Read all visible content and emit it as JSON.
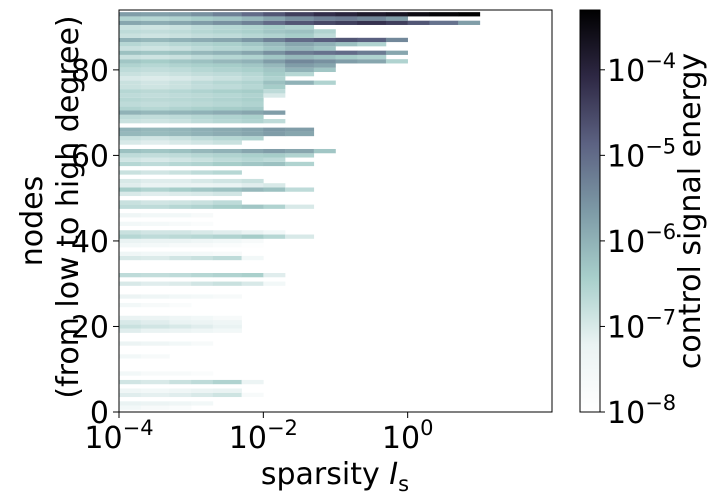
{
  "chart_data": {
    "type": "heatmap",
    "x_scale": "log",
    "xlim": [
      0.0001,
      100
    ],
    "ylim": [
      0,
      94
    ],
    "x_ticks": [
      {
        "value": 0.0001,
        "label": "10",
        "exp": "−4"
      },
      {
        "value": 0.01,
        "label": "10",
        "exp": "−2"
      },
      {
        "value": 1,
        "label": "10",
        "exp": "0"
      }
    ],
    "y_ticks": [
      {
        "value": 0,
        "label": "0"
      },
      {
        "value": 20,
        "label": "20"
      },
      {
        "value": 40,
        "label": "40"
      },
      {
        "value": 60,
        "label": "60"
      },
      {
        "value": 80,
        "label": "80"
      }
    ],
    "xlabel_main": "sparsity ",
    "xlabel_italic": "I",
    "xlabel_sub": "s",
    "ylabel_line1": "nodes",
    "ylabel_line2": "(from low to high degree)",
    "colorbar": {
      "label": "control signal energy",
      "scale": "log",
      "range": [
        1e-08,
        0.0005
      ],
      "ticks": [
        {
          "value": 1e-08,
          "label": "10",
          "exp": "−8"
        },
        {
          "value": 1e-07,
          "label": "10",
          "exp": "−7"
        },
        {
          "value": 1e-06,
          "label": "10",
          "exp": "−6"
        },
        {
          "value": 1e-05,
          "label": "10",
          "exp": "−5"
        },
        {
          "value": 0.0001,
          "label": "10",
          "exp": "−4"
        }
      ],
      "colormap": [
        "#ffffff",
        "#eaf3f3",
        "#a8cfcb",
        "#7d9aa6",
        "#5c6282",
        "#2e2844",
        "#000000"
      ]
    },
    "x_bin_edges": [
      0.0001,
      0.0002,
      0.0005,
      0.001,
      0.002,
      0.005,
      0.01,
      0.02,
      0.05,
      0.1,
      0.2,
      0.5,
      1,
      2,
      5,
      10
    ],
    "rows": [
      {
        "node": 1,
        "energies": [
          3e-08,
          2e-08,
          1.5e-08
        ]
      },
      {
        "node": 2,
        "energies": [
          6e-08,
          5e-08,
          4e-08,
          3e-08
        ]
      },
      {
        "node": 4,
        "energies": [
          8e-08,
          7e-08,
          8e-08,
          1e-07,
          1.3e-07,
          2e-08
        ]
      },
      {
        "node": 5,
        "energies": [
          4e-08,
          3e-08,
          4e-08,
          5e-08,
          6e-08
        ]
      },
      {
        "node": 7,
        "energies": [
          1.2e-07,
          1e-07,
          1.5e-07,
          2e-07,
          3e-07,
          5e-08
        ]
      },
      {
        "node": 9,
        "energies": [
          3e-08,
          2e-08,
          2e-08,
          1.5e-08
        ]
      },
      {
        "node": 13,
        "energies": [
          3e-08,
          2e-08
        ]
      },
      {
        "node": 16,
        "energies": [
          5e-08,
          4e-08,
          3e-08,
          2e-08
        ]
      },
      {
        "node": 19,
        "energies": [
          8e-08,
          6e-08,
          5e-08,
          4e-08,
          3e-08
        ]
      },
      {
        "node": 20,
        "energies": [
          1.5e-07,
          1.2e-07,
          1e-07,
          8e-08,
          6e-08
        ]
      },
      {
        "node": 21,
        "energies": [
          1e-07,
          8e-08,
          6e-08,
          5e-08,
          4e-08
        ]
      },
      {
        "node": 22,
        "energies": [
          6e-08,
          5e-08,
          4e-08,
          3e-08,
          2e-08
        ]
      },
      {
        "node": 25,
        "energies": [
          3e-08,
          2e-08,
          1.5e-08
        ]
      },
      {
        "node": 27,
        "energies": [
          5e-08,
          4e-08,
          3e-08,
          2.5e-08,
          2e-08
        ]
      },
      {
        "node": 30,
        "energies": [
          1e-07,
          8e-08,
          9e-08,
          1.2e-07,
          1.5e-07,
          1e-07,
          3e-08
        ]
      },
      {
        "node": 32,
        "energies": [
          2e-07,
          1.8e-07,
          2e-07,
          2.5e-07,
          3e-07,
          3.5e-07,
          8e-08
        ]
      },
      {
        "node": 36,
        "energies": [
          1e-07,
          9e-08,
          1.2e-07,
          1.5e-07,
          2e-07,
          3e-08
        ]
      },
      {
        "node": 37,
        "energies": [
          4e-08,
          3e-08,
          3e-08,
          2.5e-08,
          2e-08
        ]
      },
      {
        "node": 39,
        "energies": [
          3e-08,
          2.5e-08,
          2e-08,
          2e-08,
          1.5e-08,
          1.2e-08
        ]
      },
      {
        "node": 40,
        "energies": [
          6e-08,
          5e-08,
          5e-08,
          4e-08,
          3e-08,
          2e-08
        ]
      },
      {
        "node": 41,
        "energies": [
          2.5e-07,
          2e-07,
          2.2e-07,
          2.5e-07,
          3e-07,
          4e-07,
          2.5e-07,
          1e-07
        ]
      },
      {
        "node": 42,
        "energies": [
          1.5e-07,
          1.2e-07,
          1.2e-07,
          1e-07,
          8e-08,
          6e-08,
          3e-08
        ]
      },
      {
        "node": 44,
        "energies": [
          3e-08,
          2.5e-08,
          2e-08,
          1.5e-08
        ]
      },
      {
        "node": 46,
        "energies": [
          4e-08,
          3e-08,
          3e-08,
          2e-08
        ]
      },
      {
        "node": 48,
        "energies": [
          2e-07,
          2e-07,
          2.5e-07,
          3e-07,
          4e-07,
          5e-07,
          3e-07,
          1e-07
        ]
      },
      {
        "node": 49,
        "energies": [
          1.5e-07,
          1.2e-07,
          1.3e-07,
          1.5e-07,
          2e-07
        ]
      },
      {
        "node": 51,
        "energies": [
          1e-07,
          8e-08,
          9e-08,
          1e-07,
          1.2e-07
        ]
      },
      {
        "node": 52,
        "energies": [
          4e-07,
          3e-07,
          4e-07,
          5e-07,
          6e-07,
          8e-07,
          6e-07,
          2e-07
        ]
      },
      {
        "node": 53,
        "energies": [
          8e-08,
          6e-08,
          6e-08,
          5e-08,
          6e-08,
          8e-08,
          1e-07
        ]
      },
      {
        "node": 54,
        "energies": [
          1e-07,
          8e-08,
          8e-08,
          1e-07,
          1.2e-07,
          1.5e-07
        ]
      },
      {
        "node": 56,
        "energies": [
          1.5e-07,
          1.2e-07,
          1.5e-07,
          2e-07,
          2.5e-07
        ]
      },
      {
        "node": 58,
        "energies": [
          2.5e-07,
          2e-07,
          2.5e-07,
          3e-07,
          4e-07,
          5e-07,
          6e-07,
          3e-07
        ]
      },
      {
        "node": 59,
        "energies": [
          1.2e-07,
          1e-07,
          1.2e-07,
          1.5e-07,
          2e-07,
          2.5e-07,
          2e-07
        ]
      },
      {
        "node": 60,
        "energies": [
          2e-07,
          1.8e-07,
          2e-07,
          2.5e-07,
          3e-07,
          3.5e-07,
          4e-07,
          3e-07
        ]
      },
      {
        "node": 61,
        "energies": [
          6e-07,
          5e-07,
          6e-07,
          8e-07,
          1e-06,
          1.5e-06,
          2e-06,
          1.5e-06,
          5e-07
        ]
      },
      {
        "node": 63,
        "energies": [
          1e-07,
          8e-08,
          1e-07,
          1.2e-07,
          1.5e-07
        ]
      },
      {
        "node": 64,
        "energies": [
          1.5e-07,
          1.2e-07,
          1.5e-07,
          2e-07,
          2.5e-07,
          3e-07
        ]
      },
      {
        "node": 65,
        "energies": [
          8e-07,
          7e-07,
          8e-07,
          1e-06,
          1.2e-06,
          1.5e-06,
          2e-06,
          1.5e-06
        ]
      },
      {
        "node": 66,
        "energies": [
          1e-06,
          8e-07,
          9e-07,
          1.1e-06,
          1.3e-06,
          1.6e-06,
          2.5e-06,
          2e-06
        ]
      },
      {
        "node": 68,
        "energies": [
          1.5e-07,
          1.3e-07,
          1.5e-07,
          2e-07,
          2.5e-07,
          3e-07,
          2e-07
        ]
      },
      {
        "node": 69,
        "energies": [
          2e-07,
          1.8e-07,
          2e-07,
          2.5e-07,
          3e-07,
          3.5e-07
        ]
      },
      {
        "node": 70,
        "energies": [
          1e-06,
          8e-07,
          9e-07,
          1e-06,
          1.2e-06,
          1.5e-06,
          2e-06
        ]
      },
      {
        "node": 71,
        "energies": [
          3e-07,
          2.5e-07,
          3e-07,
          3.5e-07,
          4e-07,
          4.5e-07
        ]
      },
      {
        "node": 72,
        "energies": [
          2e-07,
          1.8e-07,
          2e-07,
          2.2e-07,
          2.5e-07,
          3e-07
        ]
      },
      {
        "node": 73,
        "energies": [
          2.5e-07,
          2.2e-07,
          2.4e-07,
          2.6e-07,
          3e-07,
          3.5e-07
        ]
      },
      {
        "node": 74,
        "energies": [
          2e-07,
          1.8e-07,
          2e-07,
          2.2e-07,
          2.5e-07,
          3e-07,
          1e-07
        ]
      },
      {
        "node": 75,
        "energies": [
          2.5e-07,
          2.2e-07,
          2.5e-07,
          3e-07,
          3.5e-07,
          4e-07,
          2e-07
        ]
      },
      {
        "node": 76,
        "energies": [
          1.5e-07,
          1.3e-07,
          1.5e-07,
          1.8e-07,
          2e-07,
          2.5e-07,
          4e-07
        ]
      },
      {
        "node": 77,
        "energies": [
          1.5e-07,
          1.2e-07,
          1.5e-07,
          2e-07,
          2.5e-07,
          3e-07,
          6e-07,
          1e-06,
          3e-07
        ]
      },
      {
        "node": 78,
        "energies": [
          1e-07,
          9e-08,
          1e-07,
          1.2e-07,
          1.5e-07,
          2e-07,
          3e-07
        ]
      },
      {
        "node": 79,
        "energies": [
          1.5e-07,
          1.3e-07,
          1.5e-07,
          1.8e-07,
          2e-07,
          2.5e-07,
          4e-07,
          2.5e-07
        ]
      },
      {
        "node": 80,
        "energies": [
          2e-07,
          1.8e-07,
          2e-07,
          2.5e-07,
          3e-07,
          3.5e-07,
          5e-07,
          1e-06,
          5e-07
        ]
      },
      {
        "node": 81,
        "energies": [
          3e-07,
          2.5e-07,
          3e-07,
          3.5e-07,
          4e-07,
          5e-07,
          8e-07,
          2e-06,
          1.5e-06
        ]
      },
      {
        "node": 82,
        "energies": [
          5e-07,
          4e-07,
          5e-07,
          6e-07,
          8e-07,
          1e-06,
          2e-06,
          4e-06,
          3e-06,
          2e-06,
          1.5e-06,
          3e-07
        ]
      },
      {
        "node": 83,
        "energies": [
          1.5e-07,
          1.3e-07,
          1.5e-07,
          2e-07,
          2.5e-07,
          3e-07,
          5e-07,
          8e-07,
          6e-07,
          4e-07,
          3e-07
        ]
      },
      {
        "node": 84,
        "energies": [
          6e-07,
          5e-07,
          6e-07,
          8e-07,
          1e-06,
          1.5e-06,
          3e-06,
          6e-06,
          8e-06,
          1e-05,
          6e-06,
          1.5e-06
        ]
      },
      {
        "node": 85,
        "energies": [
          1.5e-07,
          1.3e-07,
          1.5e-07,
          2e-07,
          2.5e-07,
          3e-07,
          5e-07,
          8e-07,
          5e-07
        ]
      },
      {
        "node": 86,
        "energies": [
          2.5e-07,
          2e-07,
          2.5e-07,
          3e-07,
          3.5e-07,
          5e-07,
          8e-07,
          1.5e-06,
          1e-06,
          6e-07,
          3e-07
        ]
      },
      {
        "node": 87,
        "energies": [
          1e-06,
          8e-07,
          1e-06,
          1.2e-06,
          1.5e-06,
          2.5e-06,
          5e-06,
          1e-05,
          1.5e-05,
          2e-05,
          1.5e-05,
          4e-06
        ]
      },
      {
        "node": 88,
        "energies": [
          1.5e-07,
          1.3e-07,
          1.5e-07,
          1.8e-07,
          2e-07,
          2.5e-07,
          3e-07,
          4e-07,
          2e-07
        ]
      },
      {
        "node": 89,
        "energies": [
          2e-07,
          1.8e-07,
          2e-07,
          2.5e-07,
          3e-07,
          3.5e-07,
          5e-07,
          6e-07,
          3e-07
        ]
      },
      {
        "node": 90,
        "energies": [
          1.5e-07,
          1.3e-07,
          1.5e-07,
          2e-07,
          2.5e-07,
          3e-07,
          4e-07,
          3e-07
        ]
      },
      {
        "node": 91,
        "energies": [
          1.5e-06,
          1.2e-06,
          1.5e-06,
          2e-06,
          3e-06,
          5e-06,
          1e-05,
          2e-05,
          3e-05,
          4e-05,
          6e-05,
          4e-05,
          2e-05,
          8e-06,
          2e-06
        ]
      },
      {
        "node": 92,
        "energies": [
          3e-07,
          2.5e-07,
          3e-07,
          4e-07,
          5e-07,
          8e-07,
          1.5e-06,
          3e-06,
          5e-06,
          6e-06,
          4e-06,
          2e-06
        ]
      },
      {
        "node": 93,
        "energies": [
          2e-06,
          1.8e-06,
          2e-06,
          3e-06,
          5e-06,
          1e-05,
          2e-05,
          4e-05,
          7e-05,
          0.0001,
          0.00015,
          0.0002,
          0.0003,
          0.0004,
          0.0005
        ]
      }
    ]
  }
}
